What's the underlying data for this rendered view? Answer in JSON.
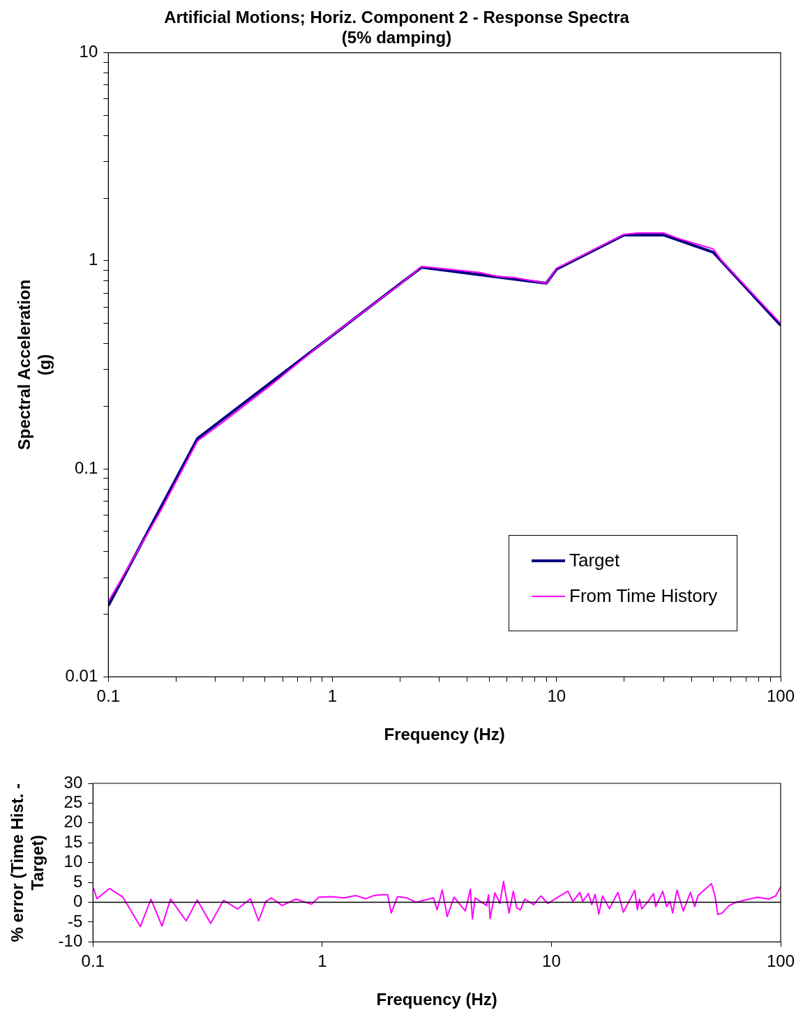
{
  "chart_data": [
    {
      "type": "line",
      "title": "Artificial Motions; Horiz. Component 2 - Response Spectra\n(5% damping)",
      "xlabel": "Frequency (Hz)",
      "ylabel": "Spectral Acceleration (g)",
      "log": "xy",
      "grid": false,
      "legend": "bottom right",
      "marker": "none",
      "line_style": "solid",
      "xlim": [
        0.1,
        100
      ],
      "xticks": [
        {
          "value": 0.1,
          "label": "0.1"
        },
        {
          "value": 0.2,
          "label": null
        },
        {
          "value": 0.3,
          "label": null
        },
        {
          "value": 0.4,
          "label": null
        },
        {
          "value": 0.5,
          "label": null
        },
        {
          "value": 0.6,
          "label": null
        },
        {
          "value": 0.7,
          "label": null
        },
        {
          "value": 0.8,
          "label": null
        },
        {
          "value": 0.9,
          "label": null
        },
        1,
        {
          "value": 2,
          "label": null
        },
        {
          "value": 3,
          "label": null
        },
        {
          "value": 4,
          "label": null
        },
        {
          "value": 5,
          "label": null
        },
        {
          "value": 6,
          "label": null
        },
        {
          "value": 7,
          "label": null
        },
        {
          "value": 8,
          "label": null
        },
        {
          "value": 9,
          "label": null
        },
        10,
        {
          "value": 20,
          "label": null
        },
        {
          "value": 30,
          "label": null
        },
        {
          "value": 40,
          "label": null
        },
        {
          "value": 50,
          "label": null
        },
        {
          "value": 60,
          "label": null
        },
        {
          "value": 70,
          "label": null
        },
        {
          "value": 80,
          "label": null
        },
        {
          "value": 90,
          "label": null
        },
        100
      ],
      "ylim": [
        0.01,
        10
      ],
      "yticks": [
        {
          "value": 0.01,
          "label": "0.01"
        },
        {
          "value": 0.02,
          "label": null
        },
        {
          "value": 0.03,
          "label": null
        },
        {
          "value": 0.04,
          "label": null
        },
        {
          "value": 0.05,
          "label": null
        },
        {
          "value": 0.06,
          "label": null
        },
        {
          "value": 0.07,
          "label": null
        },
        {
          "value": 0.08,
          "label": null
        },
        {
          "value": 0.09,
          "label": null
        },
        {
          "value": 0.1,
          "label": "0.1"
        },
        {
          "value": 0.2,
          "label": null
        },
        {
          "value": 0.3,
          "label": null
        },
        {
          "value": 0.4,
          "label": null
        },
        {
          "value": 0.5,
          "label": null
        },
        {
          "value": 0.6,
          "label": null
        },
        {
          "value": 0.7,
          "label": null
        },
        {
          "value": 0.8,
          "label": null
        },
        {
          "value": 0.9,
          "label": null
        },
        1,
        {
          "value": 2,
          "label": null
        },
        {
          "value": 3,
          "label": null
        },
        {
          "value": 4,
          "label": null
        },
        {
          "value": 5,
          "label": null
        },
        {
          "value": 6,
          "label": null
        },
        {
          "value": 7,
          "label": null
        },
        {
          "value": 8,
          "label": null
        },
        {
          "value": 9,
          "label": null
        },
        10
      ],
      "series": [
        {
          "name": "Target",
          "color": "#000080",
          "x": [
            0.1,
            0.25,
            2.5,
            9,
            10,
            20,
            30,
            50,
            100
          ],
          "values": [
            0.022,
            0.14,
            0.93,
            0.78,
            0.91,
            1.33,
            1.33,
            1.1,
            0.49
          ]
        },
        {
          "name": "From Time History",
          "color": "#ff00ff",
          "x": [
            0.1,
            0.17,
            0.25,
            0.33,
            0.53,
            1,
            2,
            2.5,
            3.3,
            4.5,
            5.5,
            6.5,
            9,
            10,
            13,
            20,
            23,
            30,
            35,
            50,
            55,
            100
          ],
          "values": [
            0.023,
            0.062,
            0.136,
            0.17,
            0.252,
            0.44,
            0.77,
            0.94,
            0.91,
            0.88,
            0.84,
            0.83,
            0.78,
            0.92,
            1.06,
            1.34,
            1.36,
            1.36,
            1.28,
            1.14,
            0.99,
            0.5
          ]
        }
      ]
    },
    {
      "type": "line",
      "xlabel": "Frequency (Hz)",
      "ylabel": "% error (Time Hist. - Target)",
      "log": "x",
      "grid": false,
      "legend": false,
      "marker": "none",
      "line_style": "solid",
      "xlim": [
        0.1,
        100
      ],
      "xticks": [
        {
          "value": 0.1,
          "label": "0.1"
        },
        1,
        10,
        100
      ],
      "ylim": [
        -10,
        30
      ],
      "yticks": [
        -10,
        -5,
        0,
        5,
        10,
        15,
        20,
        25,
        30
      ],
      "ref_lines": [
        {
          "axis": "y",
          "value": 0,
          "color": "#000000"
        }
      ],
      "series": [
        {
          "color": "#ff00ff",
          "x": [
            0.1,
            0.101,
            0.104,
            0.118,
            0.135,
            0.161,
            0.179,
            0.2,
            0.218,
            0.255,
            0.285,
            0.326,
            0.371,
            0.427,
            0.486,
            0.528,
            0.567,
            0.6,
            0.668,
            0.769,
            0.899,
            0.966,
            1.1,
            1.24,
            1.4,
            1.55,
            1.68,
            1.8,
            1.93,
            2.0,
            2.13,
            2.34,
            2.57,
            3.06,
            3.17,
            3.34,
            3.51,
            3.76,
            4.21,
            4.43,
            4.52,
            4.65,
            5.21,
            5.32,
            5.4,
            5.67,
            5.96,
            6.18,
            6.53,
            6.82,
            7.06,
            7.32,
            7.64,
            8.37,
            8.99,
            9.66,
            10.4,
            11.8,
            12.4,
            13.3,
            13.7,
            14.5,
            15.0,
            15.5,
            16.1,
            16.7,
            17.9,
            19.5,
            20.6,
            23.1,
            23.7,
            24.2,
            24.8,
            26.4,
            27.9,
            28.5,
            30.6,
            31.8,
            32.9,
            33.8,
            35.3,
            37.6,
            40.4,
            42.2,
            43.6,
            49.9,
            51.7,
            53.2,
            55.6,
            59.6,
            64.0,
            79.1,
            88.7,
            95.1,
            100
          ],
          "values": [
            3.5,
            3.3,
            0.9,
            3.5,
            1.3,
            -6.1,
            0.8,
            -6,
            0.8,
            -4.7,
            0.6,
            -5.3,
            0.5,
            -1.7,
            0.9,
            -4.7,
            0.2,
            1.1,
            -0.8,
            0.8,
            -0.5,
            1.3,
            1.4,
            1.1,
            1.7,
            0.9,
            1.7,
            1.9,
            1.9,
            -2.7,
            1.4,
            1.1,
            0,
            1.1,
            -1.9,
            3.1,
            -3.6,
            1.3,
            -2.2,
            3.3,
            -4.2,
            1.1,
            -0.8,
            1.9,
            -4.1,
            2.4,
            -0.3,
            5.3,
            -2.7,
            2.8,
            -1.4,
            -1.9,
            0.8,
            -0.6,
            1.6,
            -0.3,
            0.9,
            2.8,
            0.2,
            2.5,
            0.2,
            2.2,
            -0.6,
            2.0,
            -3.0,
            1.6,
            -1.6,
            2.5,
            -2.5,
            3.0,
            -1.9,
            0.8,
            -1.7,
            0.2,
            2.2,
            -1.1,
            2.8,
            -1.1,
            0.2,
            -2.7,
            3.1,
            -2.2,
            2.5,
            -1.1,
            1.7,
            4.7,
            1.6,
            -3.1,
            -2.7,
            -0.8,
            0,
            1.3,
            0.8,
            1.6,
            3.9
          ]
        }
      ]
    }
  ]
}
